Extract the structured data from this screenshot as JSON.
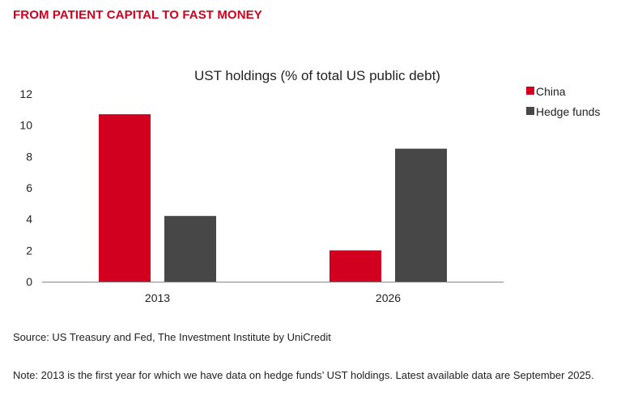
{
  "header": {
    "title": "FROM PATIENT CAPITAL TO FAST MONEY"
  },
  "chart_data": {
    "type": "bar",
    "title": "UST holdings (% of total US public debt)",
    "xlabel": "",
    "ylabel": "",
    "categories": [
      "2013",
      "2026"
    ],
    "series": [
      {
        "name": "China",
        "values": [
          10.7,
          2.0
        ],
        "color": "#d2001e"
      },
      {
        "name": "Hedge funds",
        "values": [
          4.2,
          8.5
        ],
        "color": "#474747"
      }
    ],
    "ylim": [
      0,
      12
    ],
    "yticks": [
      0,
      2,
      4,
      6,
      8,
      10,
      12
    ],
    "grid": false,
    "legend": "right"
  },
  "footer": {
    "source": "Source: US Treasury and Fed, The Investment Institute by UniCredit",
    "note": "Note: 2013 is the first year for which we have data on hedge funds’ UST holdings. Latest available data are September 2025."
  }
}
